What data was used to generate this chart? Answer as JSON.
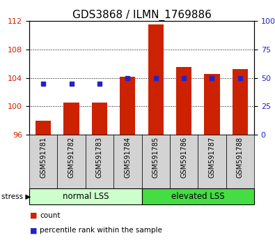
{
  "title": "GDS3868 / ILMN_1769886",
  "categories": [
    "GSM591781",
    "GSM591782",
    "GSM591783",
    "GSM591784",
    "GSM591785",
    "GSM591786",
    "GSM591787",
    "GSM591788"
  ],
  "bar_values": [
    98.0,
    100.5,
    100.5,
    104.1,
    111.5,
    105.5,
    104.5,
    105.2
  ],
  "percentile_values": [
    45,
    45,
    45,
    50,
    50,
    50,
    50,
    50
  ],
  "bar_color": "#cc2200",
  "percentile_color": "#2222cc",
  "ylim_left": [
    96,
    112
  ],
  "ylim_right": [
    0,
    100
  ],
  "yticks_left": [
    96,
    100,
    104,
    108,
    112
  ],
  "yticks_right": [
    0,
    25,
    50,
    75,
    100
  ],
  "grid_values": [
    100,
    104,
    108
  ],
  "group1_label": "normal LSS",
  "group2_label": "elevated LSS",
  "group1_color": "#ccffcc",
  "group2_color": "#44dd44",
  "stress_label": "stress",
  "bar_baseline": 96,
  "legend_count": "count",
  "legend_pct": "percentile rank within the sample",
  "title_fontsize": 11,
  "tick_fontsize": 8,
  "cat_fontsize": 7,
  "grp_fontsize": 8.5,
  "legend_fontsize": 7.5
}
